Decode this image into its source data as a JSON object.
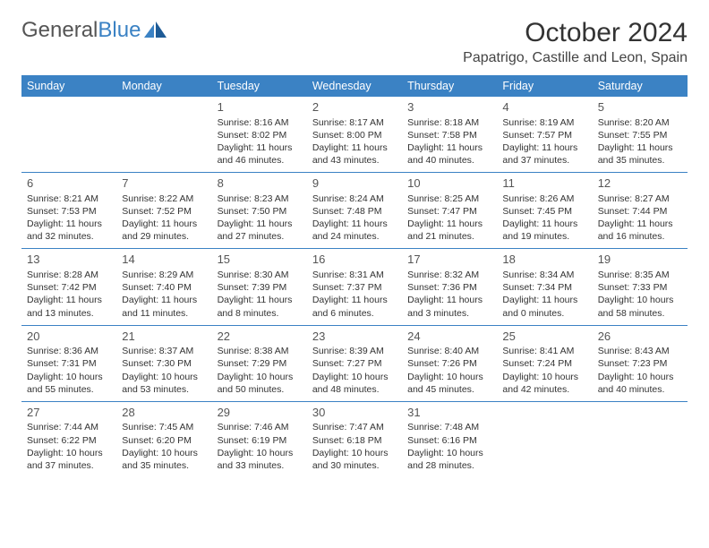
{
  "brand": {
    "part1": "General",
    "part2": "Blue"
  },
  "title": "October 2024",
  "location": "Papatrigo, Castille and Leon, Spain",
  "colors": {
    "header_bg": "#3b82c4",
    "header_text": "#ffffff",
    "border": "#3b82c4",
    "page_bg": "#ffffff",
    "text": "#333333"
  },
  "dayHeaders": [
    "Sunday",
    "Monday",
    "Tuesday",
    "Wednesday",
    "Thursday",
    "Friday",
    "Saturday"
  ],
  "weeks": [
    [
      null,
      null,
      {
        "n": "1",
        "sr": "Sunrise: 8:16 AM",
        "ss": "Sunset: 8:02 PM",
        "d1": "Daylight: 11 hours",
        "d2": "and 46 minutes."
      },
      {
        "n": "2",
        "sr": "Sunrise: 8:17 AM",
        "ss": "Sunset: 8:00 PM",
        "d1": "Daylight: 11 hours",
        "d2": "and 43 minutes."
      },
      {
        "n": "3",
        "sr": "Sunrise: 8:18 AM",
        "ss": "Sunset: 7:58 PM",
        "d1": "Daylight: 11 hours",
        "d2": "and 40 minutes."
      },
      {
        "n": "4",
        "sr": "Sunrise: 8:19 AM",
        "ss": "Sunset: 7:57 PM",
        "d1": "Daylight: 11 hours",
        "d2": "and 37 minutes."
      },
      {
        "n": "5",
        "sr": "Sunrise: 8:20 AM",
        "ss": "Sunset: 7:55 PM",
        "d1": "Daylight: 11 hours",
        "d2": "and 35 minutes."
      }
    ],
    [
      {
        "n": "6",
        "sr": "Sunrise: 8:21 AM",
        "ss": "Sunset: 7:53 PM",
        "d1": "Daylight: 11 hours",
        "d2": "and 32 minutes."
      },
      {
        "n": "7",
        "sr": "Sunrise: 8:22 AM",
        "ss": "Sunset: 7:52 PM",
        "d1": "Daylight: 11 hours",
        "d2": "and 29 minutes."
      },
      {
        "n": "8",
        "sr": "Sunrise: 8:23 AM",
        "ss": "Sunset: 7:50 PM",
        "d1": "Daylight: 11 hours",
        "d2": "and 27 minutes."
      },
      {
        "n": "9",
        "sr": "Sunrise: 8:24 AM",
        "ss": "Sunset: 7:48 PM",
        "d1": "Daylight: 11 hours",
        "d2": "and 24 minutes."
      },
      {
        "n": "10",
        "sr": "Sunrise: 8:25 AM",
        "ss": "Sunset: 7:47 PM",
        "d1": "Daylight: 11 hours",
        "d2": "and 21 minutes."
      },
      {
        "n": "11",
        "sr": "Sunrise: 8:26 AM",
        "ss": "Sunset: 7:45 PM",
        "d1": "Daylight: 11 hours",
        "d2": "and 19 minutes."
      },
      {
        "n": "12",
        "sr": "Sunrise: 8:27 AM",
        "ss": "Sunset: 7:44 PM",
        "d1": "Daylight: 11 hours",
        "d2": "and 16 minutes."
      }
    ],
    [
      {
        "n": "13",
        "sr": "Sunrise: 8:28 AM",
        "ss": "Sunset: 7:42 PM",
        "d1": "Daylight: 11 hours",
        "d2": "and 13 minutes."
      },
      {
        "n": "14",
        "sr": "Sunrise: 8:29 AM",
        "ss": "Sunset: 7:40 PM",
        "d1": "Daylight: 11 hours",
        "d2": "and 11 minutes."
      },
      {
        "n": "15",
        "sr": "Sunrise: 8:30 AM",
        "ss": "Sunset: 7:39 PM",
        "d1": "Daylight: 11 hours",
        "d2": "and 8 minutes."
      },
      {
        "n": "16",
        "sr": "Sunrise: 8:31 AM",
        "ss": "Sunset: 7:37 PM",
        "d1": "Daylight: 11 hours",
        "d2": "and 6 minutes."
      },
      {
        "n": "17",
        "sr": "Sunrise: 8:32 AM",
        "ss": "Sunset: 7:36 PM",
        "d1": "Daylight: 11 hours",
        "d2": "and 3 minutes."
      },
      {
        "n": "18",
        "sr": "Sunrise: 8:34 AM",
        "ss": "Sunset: 7:34 PM",
        "d1": "Daylight: 11 hours",
        "d2": "and 0 minutes."
      },
      {
        "n": "19",
        "sr": "Sunrise: 8:35 AM",
        "ss": "Sunset: 7:33 PM",
        "d1": "Daylight: 10 hours",
        "d2": "and 58 minutes."
      }
    ],
    [
      {
        "n": "20",
        "sr": "Sunrise: 8:36 AM",
        "ss": "Sunset: 7:31 PM",
        "d1": "Daylight: 10 hours",
        "d2": "and 55 minutes."
      },
      {
        "n": "21",
        "sr": "Sunrise: 8:37 AM",
        "ss": "Sunset: 7:30 PM",
        "d1": "Daylight: 10 hours",
        "d2": "and 53 minutes."
      },
      {
        "n": "22",
        "sr": "Sunrise: 8:38 AM",
        "ss": "Sunset: 7:29 PM",
        "d1": "Daylight: 10 hours",
        "d2": "and 50 minutes."
      },
      {
        "n": "23",
        "sr": "Sunrise: 8:39 AM",
        "ss": "Sunset: 7:27 PM",
        "d1": "Daylight: 10 hours",
        "d2": "and 48 minutes."
      },
      {
        "n": "24",
        "sr": "Sunrise: 8:40 AM",
        "ss": "Sunset: 7:26 PM",
        "d1": "Daylight: 10 hours",
        "d2": "and 45 minutes."
      },
      {
        "n": "25",
        "sr": "Sunrise: 8:41 AM",
        "ss": "Sunset: 7:24 PM",
        "d1": "Daylight: 10 hours",
        "d2": "and 42 minutes."
      },
      {
        "n": "26",
        "sr": "Sunrise: 8:43 AM",
        "ss": "Sunset: 7:23 PM",
        "d1": "Daylight: 10 hours",
        "d2": "and 40 minutes."
      }
    ],
    [
      {
        "n": "27",
        "sr": "Sunrise: 7:44 AM",
        "ss": "Sunset: 6:22 PM",
        "d1": "Daylight: 10 hours",
        "d2": "and 37 minutes."
      },
      {
        "n": "28",
        "sr": "Sunrise: 7:45 AM",
        "ss": "Sunset: 6:20 PM",
        "d1": "Daylight: 10 hours",
        "d2": "and 35 minutes."
      },
      {
        "n": "29",
        "sr": "Sunrise: 7:46 AM",
        "ss": "Sunset: 6:19 PM",
        "d1": "Daylight: 10 hours",
        "d2": "and 33 minutes."
      },
      {
        "n": "30",
        "sr": "Sunrise: 7:47 AM",
        "ss": "Sunset: 6:18 PM",
        "d1": "Daylight: 10 hours",
        "d2": "and 30 minutes."
      },
      {
        "n": "31",
        "sr": "Sunrise: 7:48 AM",
        "ss": "Sunset: 6:16 PM",
        "d1": "Daylight: 10 hours",
        "d2": "and 28 minutes."
      },
      null,
      null
    ]
  ]
}
